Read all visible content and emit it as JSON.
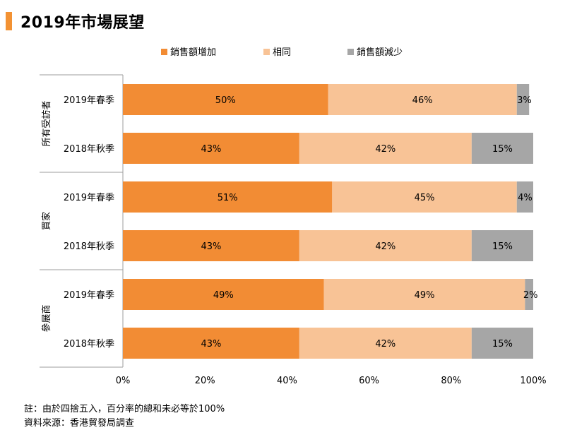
{
  "title": "2019年市場展望",
  "colors": {
    "accent": "#f39233",
    "increase": "#f28c34",
    "same": "#f8c396",
    "decrease": "#a6a6a6"
  },
  "notes": {
    "note": "註：由於四捨五入，百分率的總和未必等於100%",
    "source": "資料來源：香港貿發局調查"
  },
  "chart_data": {
    "type": "bar",
    "orientation": "horizontal",
    "stacked": true,
    "title": "2019年市場展望",
    "legend": [
      "銷售額增加",
      "相同",
      "銷售額減少"
    ],
    "legend_position": "top",
    "groups": [
      {
        "name": "所有受訪者",
        "categories": [
          "2019年春季",
          "2018年秋季"
        ]
      },
      {
        "name": "買家",
        "categories": [
          "2019年春季",
          "2018年秋季"
        ]
      },
      {
        "name": "參展商",
        "categories": [
          "2019年春季",
          "2018年秋季"
        ]
      }
    ],
    "series": [
      {
        "name": "銷售額增加",
        "values": [
          50,
          43,
          51,
          43,
          49,
          43
        ],
        "labels": [
          "50%",
          "43%",
          "51%",
          "43%",
          "49%",
          "43%"
        ]
      },
      {
        "name": "相同",
        "values": [
          46,
          42,
          45,
          42,
          49,
          42
        ],
        "labels": [
          "46%",
          "42%",
          "45%",
          "42%",
          "49%",
          "42%"
        ]
      },
      {
        "name": "銷售額減少",
        "values": [
          3,
          15,
          4,
          15,
          2,
          15
        ],
        "labels": [
          "3%",
          "15%",
          "4%",
          "15%",
          "2%",
          "15%"
        ]
      }
    ],
    "x_ticks": [
      "0%",
      "20%",
      "40%",
      "60%",
      "80%",
      "100%"
    ],
    "xlim": [
      0,
      100
    ],
    "grid": false
  }
}
